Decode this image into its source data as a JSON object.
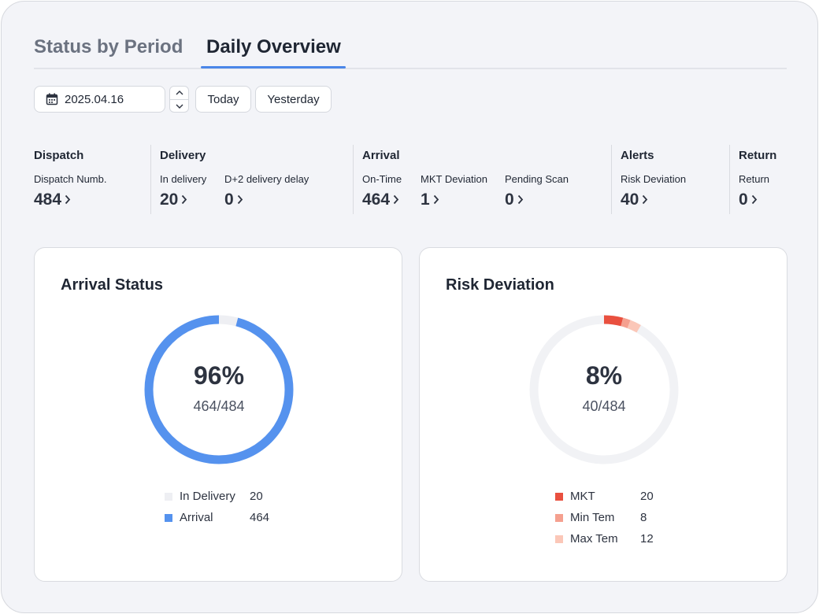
{
  "tabs": [
    {
      "label": "Status by Period"
    },
    {
      "label": "Daily Overview"
    }
  ],
  "controls": {
    "date": "2025.04.16",
    "today_label": "Today",
    "yesterday_label": "Yesterday"
  },
  "stats": {
    "dispatch": {
      "title": "Dispatch",
      "metrics": [
        {
          "label": "Dispatch Numb.",
          "value": "484"
        }
      ]
    },
    "delivery": {
      "title": "Delivery",
      "metrics": [
        {
          "label": "In delivery",
          "value": "20"
        },
        {
          "label": "D+2 delivery delay",
          "value": "0"
        }
      ]
    },
    "arrival": {
      "title": "Arrival",
      "metrics": [
        {
          "label": "On-Time",
          "value": "464"
        },
        {
          "label": "MKT Deviation",
          "value": "1"
        },
        {
          "label": "Pending Scan",
          "value": "0"
        }
      ]
    },
    "alerts": {
      "title": "Alerts",
      "metrics": [
        {
          "label": "Risk Deviation",
          "value": "40"
        }
      ]
    },
    "return": {
      "title": "Return",
      "metrics": [
        {
          "label": "Return",
          "value": "0"
        }
      ]
    }
  },
  "arrival_status": {
    "title": "Arrival Status",
    "percent": "96%",
    "ratio": "464/484",
    "total": 484,
    "legend": [
      {
        "label": "In Delivery",
        "value": "20",
        "color": "#eeeff3"
      },
      {
        "label": "Arrival",
        "value": "464",
        "color": "#5592ee"
      }
    ]
  },
  "risk_deviation": {
    "title": "Risk Deviation",
    "percent": "8%",
    "ratio": "40/484",
    "total": 484,
    "legend": [
      {
        "label": "MKT",
        "value": "20",
        "color": "#e9503f"
      },
      {
        "label": "Min Tem",
        "value": "8",
        "color": "#f5a08f"
      },
      {
        "label": "Max Tem",
        "value": "12",
        "color": "#fbc7b8"
      }
    ]
  },
  "colors": {
    "accent": "#4a86e8",
    "track": "#f1f2f5"
  }
}
